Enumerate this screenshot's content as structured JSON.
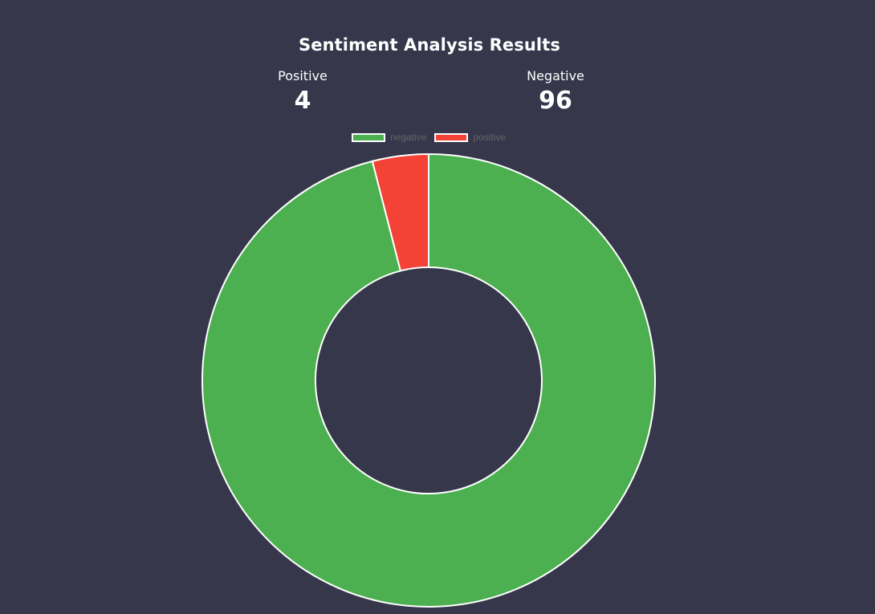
{
  "title": "Sentiment Analysis Results",
  "stats": {
    "positive": {
      "label": "Positive",
      "value": "4"
    },
    "negative": {
      "label": "Negative",
      "value": "96"
    }
  },
  "colors": {
    "background": "#36374b",
    "negative": "#4caf50",
    "positive": "#f44336",
    "border": "#ffffff"
  },
  "chart_data": {
    "type": "pie",
    "variant": "doughnut",
    "categories": [
      "negative",
      "positive"
    ],
    "values": [
      96,
      4
    ],
    "title": "",
    "legend": [
      "negative",
      "positive"
    ],
    "legend_position": "top"
  }
}
